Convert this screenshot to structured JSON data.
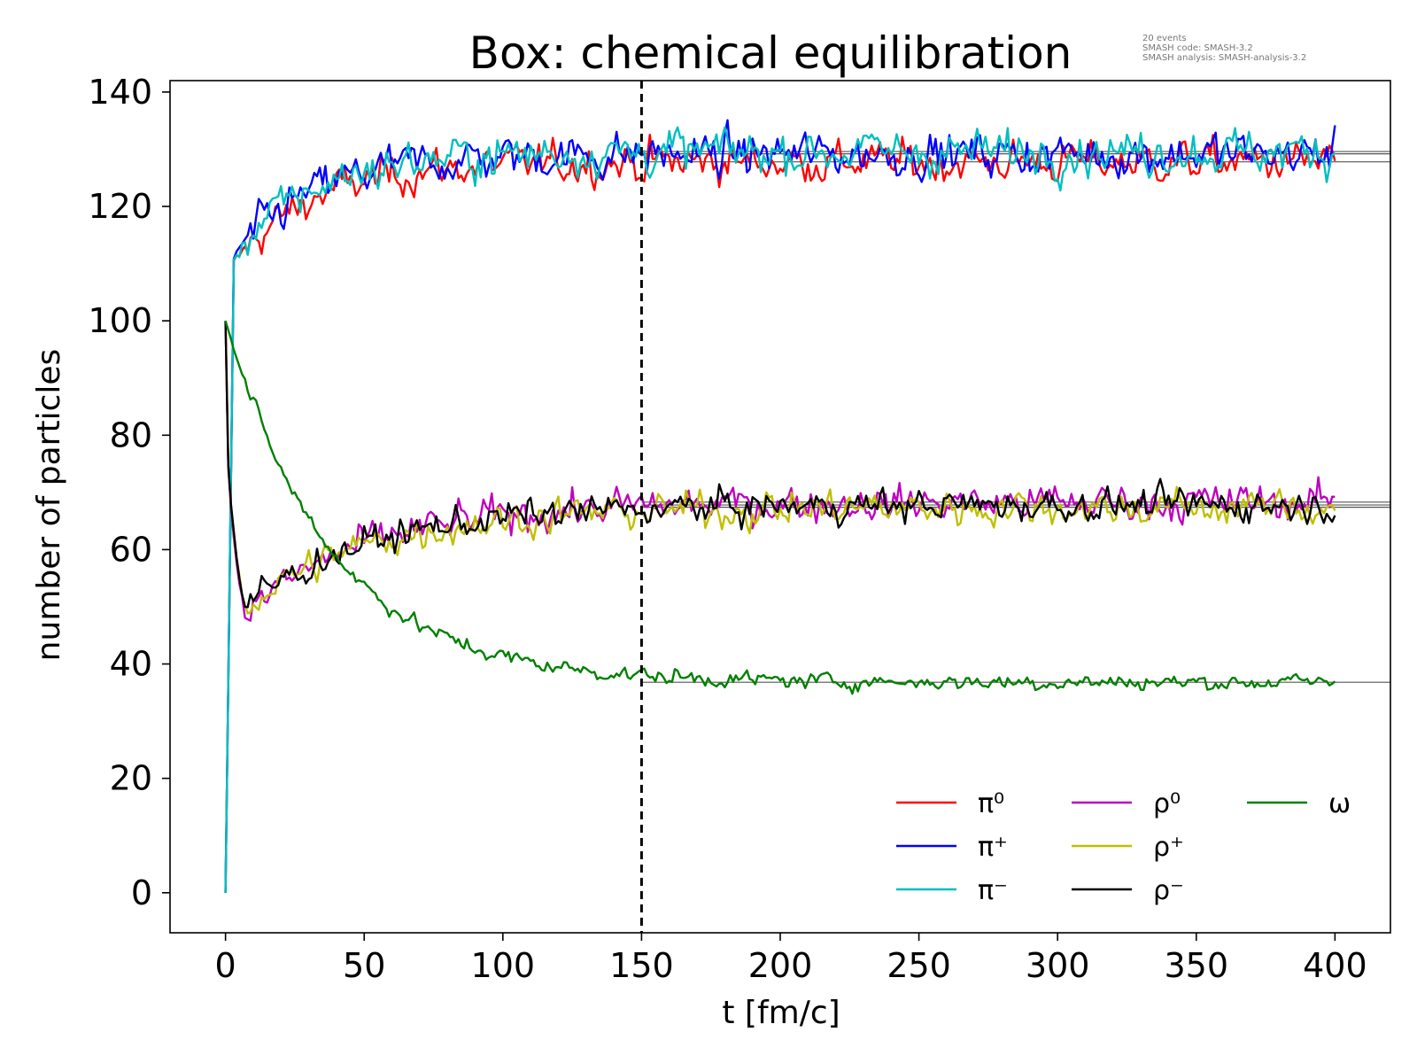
{
  "chart_data": {
    "type": "line",
    "title": "Box: chemical equilibration",
    "xlabel": "t [fm/c]",
    "ylabel": "number of particles",
    "xlim": [
      -20,
      420
    ],
    "ylim": [
      -7,
      142
    ],
    "xticks": [
      0,
      50,
      100,
      150,
      200,
      250,
      300,
      350,
      400
    ],
    "yticks": [
      0,
      20,
      40,
      60,
      80,
      100,
      120,
      140
    ],
    "grid": false,
    "legend_position": "lower-right",
    "info_text": [
      "20 events",
      "SMASH code:      SMASH-3.2",
      "SMASH analysis:  SMASH-analysis-3.2"
    ],
    "vline_x": 150,
    "t_end": 400,
    "dt": 1,
    "series": [
      {
        "name": "π⁰",
        "color": "#ff0000",
        "start": 0,
        "plateau": 127.8,
        "noise": 1.8,
        "shape": "pion",
        "tau": 28
      },
      {
        "name": "π⁺",
        "color": "#0000ff",
        "start": 0,
        "plateau": 129.2,
        "noise": 1.9,
        "shape": "pion",
        "tau": 28
      },
      {
        "name": "π⁻",
        "color": "#00bfbf",
        "start": 0,
        "plateau": 129.6,
        "noise": 1.9,
        "shape": "pion",
        "tau": 28
      },
      {
        "name": "ρ⁰",
        "color": "#bf00bf",
        "start": 100,
        "plateau": 68.3,
        "noise": 1.6,
        "shape": "rho",
        "min": 49.0,
        "tmin": 7,
        "tau": 45
      },
      {
        "name": "ρ⁺",
        "color": "#bfbf00",
        "start": 100,
        "plateau": 67.4,
        "noise": 1.6,
        "shape": "rho",
        "min": 50.0,
        "tmin": 7,
        "tau": 45
      },
      {
        "name": "ρ⁻",
        "color": "#000000",
        "start": 100,
        "plateau": 67.8,
        "noise": 1.4,
        "shape": "rho",
        "min": 50.0,
        "tmin": 7,
        "tau": 45
      },
      {
        "name": "ω",
        "color": "#008000",
        "start": 100,
        "plateau": 36.8,
        "noise": 0.7,
        "shape": "decay",
        "tau": 38
      }
    ]
  }
}
